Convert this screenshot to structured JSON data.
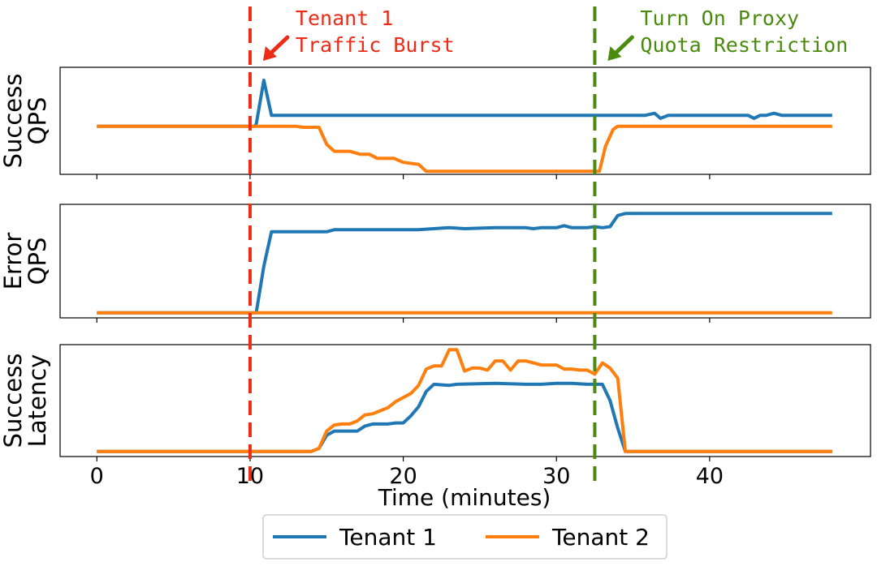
{
  "chart_data": {
    "type": "line",
    "x_range": [
      0,
      48
    ],
    "xlim": [
      -2.4,
      50.5
    ],
    "xlabel": "Time (minutes)",
    "x_ticks": [
      {
        "value": 0,
        "label": "0"
      },
      {
        "value": 10,
        "label": "10"
      },
      {
        "value": 20,
        "label": "20"
      },
      {
        "value": 30,
        "label": "30"
      },
      {
        "value": 40,
        "label": "40"
      }
    ],
    "panels": [
      {
        "id": "success-qps",
        "ylabel": [
          "Success",
          "QPS"
        ],
        "ylim": [
          0,
          1.07
        ],
        "series": [
          {
            "name": "Tenant 1",
            "points": [
              [
                0,
                0.48
              ],
              [
                10.3,
                0.48
              ],
              [
                10.4,
                0.5
              ],
              [
                10.9,
                0.94
              ],
              [
                11.4,
                0.59
              ],
              [
                15,
                0.59
              ],
              [
                20,
                0.59
              ],
              [
                25,
                0.59
              ],
              [
                30,
                0.59
              ],
              [
                34,
                0.59
              ],
              [
                35.8,
                0.59
              ],
              [
                36.4,
                0.61
              ],
              [
                36.8,
                0.56
              ],
              [
                37.3,
                0.59
              ],
              [
                42,
                0.59
              ],
              [
                42.5,
                0.59
              ],
              [
                42.9,
                0.56
              ],
              [
                43.3,
                0.59
              ],
              [
                43.7,
                0.59
              ],
              [
                44.2,
                0.61
              ],
              [
                44.7,
                0.59
              ],
              [
                48,
                0.59
              ]
            ]
          },
          {
            "name": "Tenant 2",
            "points": [
              [
                0,
                0.48
              ],
              [
                13,
                0.48
              ],
              [
                13.5,
                0.47
              ],
              [
                14.5,
                0.47
              ],
              [
                15,
                0.3
              ],
              [
                15.5,
                0.23
              ],
              [
                16.5,
                0.23
              ],
              [
                17.2,
                0.2
              ],
              [
                17.8,
                0.2
              ],
              [
                18.3,
                0.16
              ],
              [
                19.4,
                0.16
              ],
              [
                20,
                0.12
              ],
              [
                21,
                0.1
              ],
              [
                21.5,
                0.03
              ],
              [
                22,
                0.03
              ],
              [
                26,
                0.03
              ],
              [
                30,
                0.03
              ],
              [
                32,
                0.03
              ],
              [
                32.8,
                0.03
              ],
              [
                33.2,
                0.28
              ],
              [
                33.7,
                0.45
              ],
              [
                34,
                0.48
              ],
              [
                40,
                0.48
              ],
              [
                48,
                0.48
              ]
            ]
          }
        ]
      },
      {
        "id": "error-qps",
        "ylabel": [
          "Error",
          "QPS"
        ],
        "ylim": [
          -0.05,
          1.07
        ],
        "series": [
          {
            "name": "Tenant 1",
            "points": [
              [
                0,
                0
              ],
              [
                10.4,
                0
              ],
              [
                10.9,
                0.46
              ],
              [
                11.4,
                0.8
              ],
              [
                14,
                0.8
              ],
              [
                15,
                0.8
              ],
              [
                15.5,
                0.82
              ],
              [
                20,
                0.82
              ],
              [
                21,
                0.82
              ],
              [
                22,
                0.83
              ],
              [
                23,
                0.84
              ],
              [
                24,
                0.83
              ],
              [
                26,
                0.84
              ],
              [
                28,
                0.84
              ],
              [
                28.5,
                0.83
              ],
              [
                29,
                0.84
              ],
              [
                30,
                0.84
              ],
              [
                30.5,
                0.86
              ],
              [
                31,
                0.84
              ],
              [
                32,
                0.84
              ],
              [
                32.5,
                0.85
              ],
              [
                33,
                0.84
              ],
              [
                33.5,
                0.85
              ],
              [
                34,
                0.96
              ],
              [
                34.5,
                0.98
              ],
              [
                40,
                0.98
              ],
              [
                48,
                0.98
              ]
            ]
          },
          {
            "name": "Tenant 2",
            "points": [
              [
                0,
                0
              ],
              [
                48,
                0
              ]
            ]
          }
        ]
      },
      {
        "id": "success-latency",
        "ylabel": [
          "Success",
          "Latency"
        ],
        "ylim": [
          -0.05,
          1.05
        ],
        "series": [
          {
            "name": "Tenant 1",
            "points": [
              [
                0,
                0
              ],
              [
                14,
                0
              ],
              [
                14.5,
                0.03
              ],
              [
                15,
                0.16
              ],
              [
                15.5,
                0.2
              ],
              [
                17,
                0.2
              ],
              [
                17.5,
                0.25
              ],
              [
                18,
                0.27
              ],
              [
                19,
                0.27
              ],
              [
                19.5,
                0.28
              ],
              [
                20,
                0.28
              ],
              [
                20.5,
                0.35
              ],
              [
                21,
                0.44
              ],
              [
                21.5,
                0.59
              ],
              [
                22,
                0.66
              ],
              [
                23,
                0.65
              ],
              [
                23.5,
                0.66
              ],
              [
                26,
                0.67
              ],
              [
                28,
                0.66
              ],
              [
                29,
                0.66
              ],
              [
                30,
                0.67
              ],
              [
                31,
                0.67
              ],
              [
                32,
                0.66
              ],
              [
                33,
                0.66
              ],
              [
                33.5,
                0.5
              ],
              [
                34,
                0.23
              ],
              [
                34.5,
                0
              ],
              [
                48,
                0
              ]
            ]
          },
          {
            "name": "Tenant 2",
            "points": [
              [
                0,
                0
              ],
              [
                14,
                0
              ],
              [
                14.5,
                0.03
              ],
              [
                15,
                0.2
              ],
              [
                15.5,
                0.26
              ],
              [
                16,
                0.27
              ],
              [
                16.5,
                0.27
              ],
              [
                17,
                0.3
              ],
              [
                17.5,
                0.36
              ],
              [
                18,
                0.37
              ],
              [
                18.5,
                0.4
              ],
              [
                19,
                0.43
              ],
              [
                19.5,
                0.49
              ],
              [
                20,
                0.53
              ],
              [
                20.5,
                0.57
              ],
              [
                21,
                0.65
              ],
              [
                21.5,
                0.81
              ],
              [
                22,
                0.84
              ],
              [
                22.5,
                0.84
              ],
              [
                23,
                1.0
              ],
              [
                23.5,
                1.0
              ],
              [
                24,
                0.79
              ],
              [
                24.5,
                0.82
              ],
              [
                25,
                0.82
              ],
              [
                25.5,
                0.8
              ],
              [
                26,
                0.89
              ],
              [
                26.5,
                0.89
              ],
              [
                27,
                0.8
              ],
              [
                27.5,
                0.89
              ],
              [
                28,
                0.89
              ],
              [
                29,
                0.85
              ],
              [
                30,
                0.85
              ],
              [
                30.5,
                0.81
              ],
              [
                31,
                0.81
              ],
              [
                31.5,
                0.8
              ],
              [
                32,
                0.8
              ],
              [
                32.5,
                0.76
              ],
              [
                33,
                0.87
              ],
              [
                33.5,
                0.82
              ],
              [
                34,
                0.72
              ],
              [
                34.5,
                0
              ],
              [
                48,
                0
              ]
            ]
          }
        ]
      }
    ],
    "legend": {
      "position": "bottom-center",
      "entries": [
        {
          "label": "Tenant 1",
          "color": "#1f77b4"
        },
        {
          "label": "Tenant 2",
          "color": "#ff7f0e"
        }
      ]
    },
    "series_colors": {
      "Tenant 1": "#1f77b4",
      "Tenant 2": "#ff7f0e"
    },
    "event_lines": [
      {
        "id": "burst",
        "x": 10,
        "color": "#ee2b17",
        "text": [
          "Tenant 1",
          "Traffic Burst"
        ]
      },
      {
        "id": "quota",
        "x": 32.5,
        "color": "#4a8b0e",
        "text": [
          "Turn On Proxy",
          "Quota Restriction"
        ]
      }
    ],
    "grid": false
  }
}
